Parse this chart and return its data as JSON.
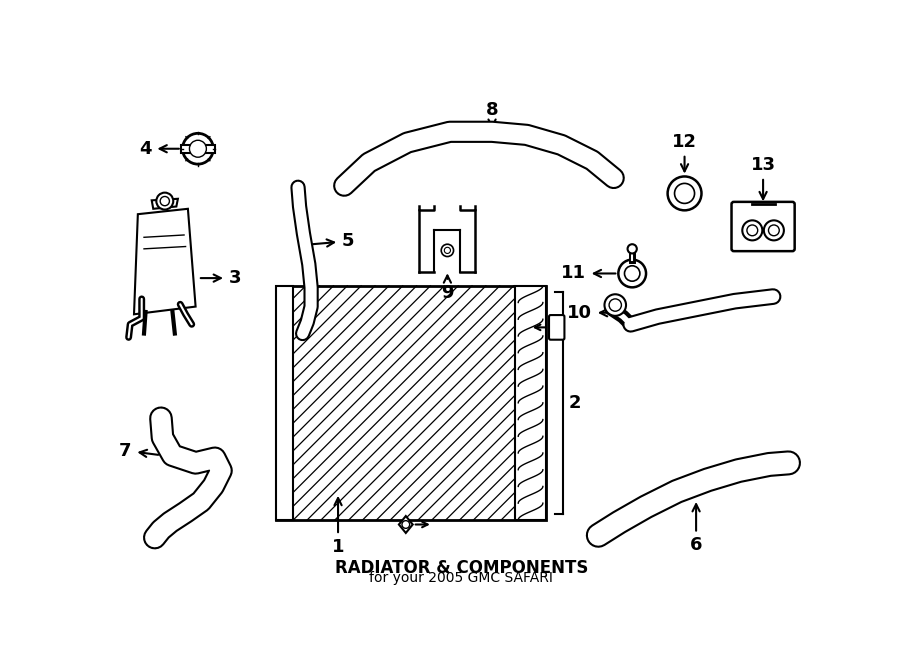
{
  "title": "RADIATOR & COMPONENTS",
  "subtitle": "for your 2005 GMC SAFARI",
  "bg_color": "#ffffff",
  "line_color": "#000000",
  "title_fontsize": 12,
  "subtitle_fontsize": 10,
  "label_fontsize": 13,
  "fig_width": 9.0,
  "fig_height": 6.62,
  "dpi": 100
}
